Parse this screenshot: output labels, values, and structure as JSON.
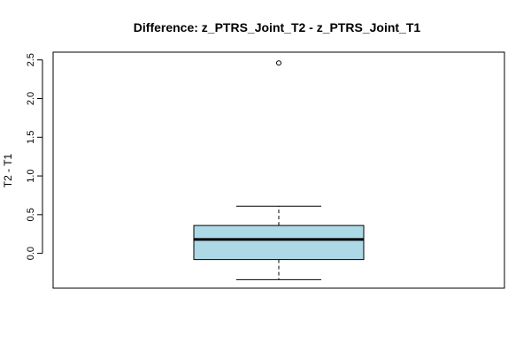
{
  "chart_data": {
    "type": "boxplot",
    "title": "Difference: z_PTRS_Joint_T2 - z_PTRS_Joint_T1",
    "xlabel": "",
    "ylabel": "T2 - T1",
    "ylim": [
      -0.45,
      2.6
    ],
    "yticks": [
      "0.0",
      "0.5",
      "1.0",
      "1.5",
      "2.0",
      "2.5"
    ],
    "grid": false,
    "box": {
      "whisker_low": -0.34,
      "q1": -0.08,
      "median": 0.18,
      "q3": 0.36,
      "whisker_high": 0.61,
      "outliers": [
        2.46
      ]
    },
    "colors": {
      "box_fill": "#add8e6",
      "stroke": "#000000",
      "background": "#ffffff"
    }
  }
}
